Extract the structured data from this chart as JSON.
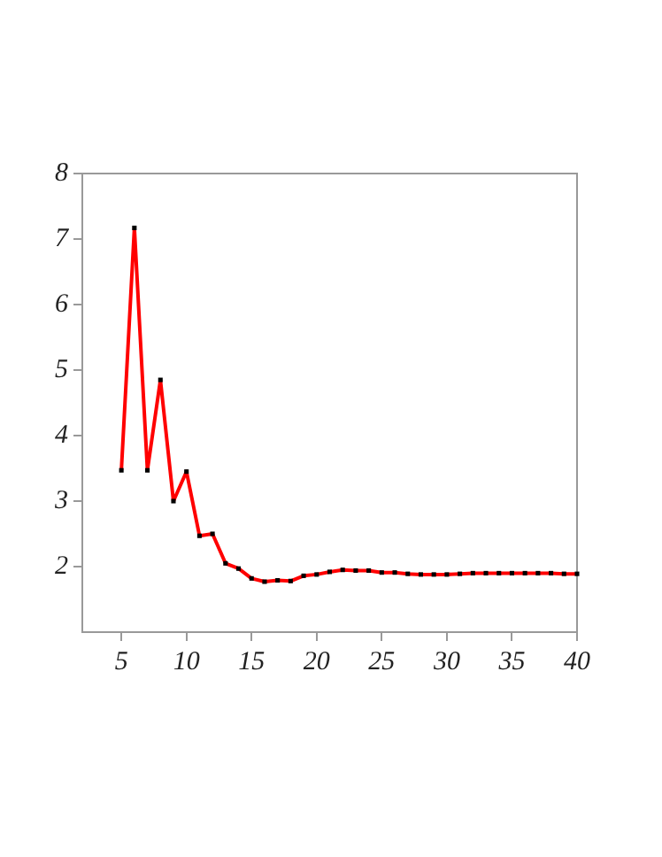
{
  "chart_data": {
    "type": "line",
    "x": [
      5,
      6,
      7,
      8,
      9,
      10,
      11,
      12,
      13,
      14,
      15,
      16,
      17,
      18,
      19,
      20,
      21,
      22,
      23,
      24,
      25,
      26,
      27,
      28,
      29,
      30,
      31,
      32,
      33,
      34,
      35,
      36,
      37,
      38,
      39,
      40
    ],
    "series": [
      {
        "color": "#ff0000",
        "values": [
          3.47,
          7.17,
          3.47,
          4.85,
          3.0,
          3.45,
          2.47,
          2.5,
          2.05,
          1.97,
          1.82,
          1.77,
          1.79,
          1.78,
          1.86,
          1.88,
          1.92,
          1.95,
          1.94,
          1.94,
          1.91,
          1.91,
          1.89,
          1.88,
          1.88,
          1.88,
          1.89,
          1.9,
          1.9,
          1.9,
          1.9,
          1.9,
          1.9,
          1.9,
          1.89,
          1.89
        ]
      }
    ],
    "xlim": [
      2,
      40
    ],
    "xticks": [
      5,
      10,
      15,
      20,
      25,
      30,
      35,
      40
    ],
    "ylim": [
      1,
      8
    ],
    "yticks": [
      2,
      3,
      4,
      5,
      6,
      7,
      8
    ],
    "grid": false,
    "legend": false,
    "marker": "square",
    "line_style": "solid"
  }
}
